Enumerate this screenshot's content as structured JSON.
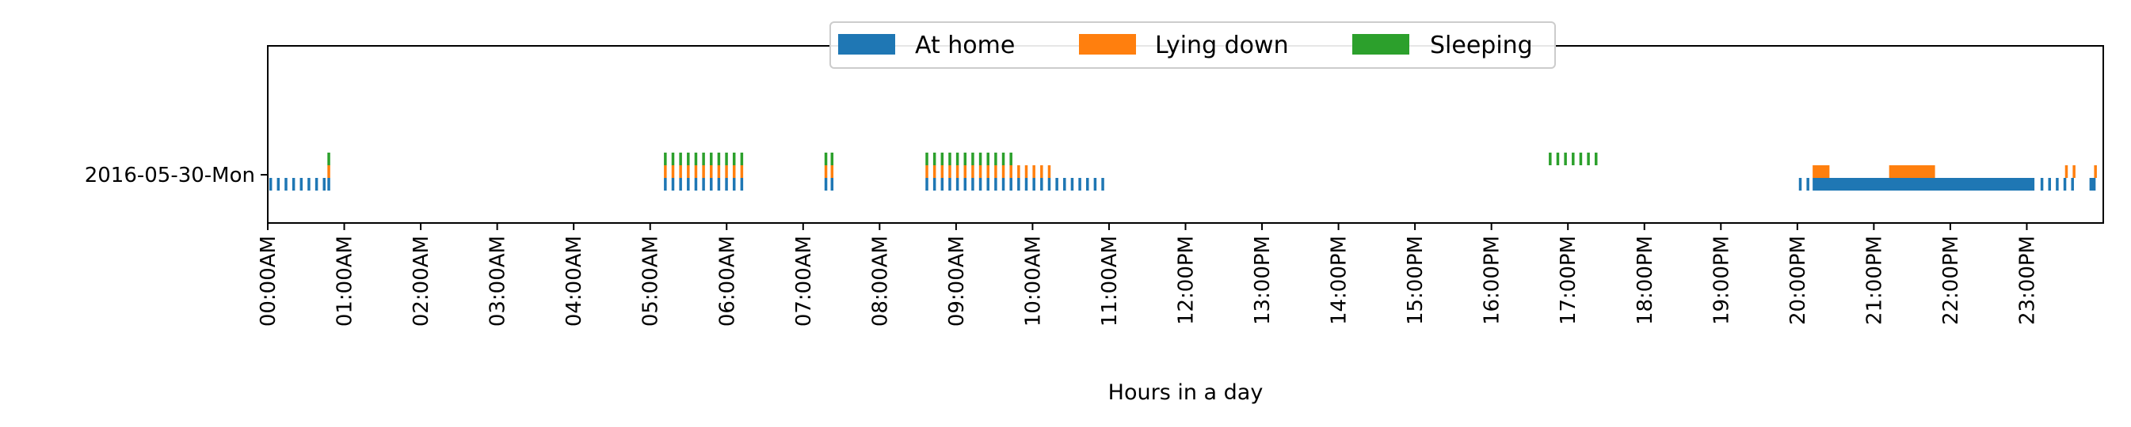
{
  "chart_data": {
    "type": "timeline",
    "xlabel": "Hours in a day",
    "ylabel": "",
    "xlim": [
      0,
      24
    ],
    "grid": false,
    "legend_placement": "upper-center",
    "categories": [
      "2016-05-30-Mon"
    ],
    "x_ticks": [
      "00:00AM",
      "01:00AM",
      "02:00AM",
      "03:00AM",
      "04:00AM",
      "05:00AM",
      "06:00AM",
      "07:00AM",
      "08:00AM",
      "09:00AM",
      "10:00AM",
      "11:00AM",
      "12:00PM",
      "13:00PM",
      "14:00PM",
      "15:00PM",
      "16:00PM",
      "17:00PM",
      "18:00PM",
      "19:00PM",
      "20:00PM",
      "21:00PM",
      "22:00PM",
      "23:00PM"
    ],
    "series": [
      {
        "name": "At home",
        "color": "#1f77b4",
        "marks": [
          {
            "t": 0.02
          },
          {
            "t": 0.12
          },
          {
            "t": 0.22
          },
          {
            "t": 0.32
          },
          {
            "t": 0.42
          },
          {
            "t": 0.52
          },
          {
            "t": 0.62
          },
          {
            "t": 0.72
          },
          {
            "t": 0.78
          },
          {
            "t": 5.18
          },
          {
            "t": 5.28
          },
          {
            "t": 5.38
          },
          {
            "t": 5.48
          },
          {
            "t": 5.58
          },
          {
            "t": 5.68
          },
          {
            "t": 5.78
          },
          {
            "t": 5.88
          },
          {
            "t": 5.98
          },
          {
            "t": 6.08
          },
          {
            "t": 6.18
          },
          {
            "t": 7.28
          },
          {
            "t": 7.36
          },
          {
            "t": 8.6
          },
          {
            "t": 8.7
          },
          {
            "t": 8.8
          },
          {
            "t": 8.9
          },
          {
            "t": 9.0
          },
          {
            "t": 9.1
          },
          {
            "t": 9.2
          },
          {
            "t": 9.3
          },
          {
            "t": 9.4
          },
          {
            "t": 9.5
          },
          {
            "t": 9.6
          },
          {
            "t": 9.7
          },
          {
            "t": 9.8
          },
          {
            "t": 9.9
          },
          {
            "t": 10.0
          },
          {
            "t": 10.1
          },
          {
            "t": 10.2
          },
          {
            "t": 10.3
          },
          {
            "t": 10.4
          },
          {
            "t": 10.5
          },
          {
            "t": 10.6
          },
          {
            "t": 10.7
          },
          {
            "t": 10.8
          },
          {
            "t": 10.9
          },
          {
            "t": 20.02
          },
          {
            "t": 20.12
          },
          {
            "start": 20.2,
            "end": 23.1
          },
          {
            "t": 23.18
          },
          {
            "t": 23.28
          },
          {
            "t": 23.38
          },
          {
            "t": 23.48
          },
          {
            "t": 23.58
          },
          {
            "start": 23.82,
            "end": 23.9
          }
        ]
      },
      {
        "name": "Lying down",
        "color": "#ff7f0e",
        "marks": [
          {
            "t": 0.78
          },
          {
            "t": 5.18
          },
          {
            "t": 5.28
          },
          {
            "t": 5.38
          },
          {
            "t": 5.48
          },
          {
            "t": 5.58
          },
          {
            "t": 5.68
          },
          {
            "t": 5.78
          },
          {
            "t": 5.88
          },
          {
            "t": 5.98
          },
          {
            "t": 6.08
          },
          {
            "t": 6.18
          },
          {
            "t": 7.28
          },
          {
            "t": 7.36
          },
          {
            "t": 8.6
          },
          {
            "t": 8.7
          },
          {
            "t": 8.8
          },
          {
            "t": 8.9
          },
          {
            "t": 9.0
          },
          {
            "t": 9.1
          },
          {
            "t": 9.2
          },
          {
            "t": 9.3
          },
          {
            "t": 9.4
          },
          {
            "t": 9.5
          },
          {
            "t": 9.6
          },
          {
            "t": 9.7
          },
          {
            "t": 9.8
          },
          {
            "t": 9.9
          },
          {
            "t": 10.0
          },
          {
            "t": 10.1
          },
          {
            "t": 10.2
          },
          {
            "start": 20.2,
            "end": 20.42
          },
          {
            "start": 21.2,
            "end": 21.8
          },
          {
            "t": 23.5
          },
          {
            "t": 23.6
          },
          {
            "t": 23.88
          }
        ]
      },
      {
        "name": "Sleeping",
        "color": "#2ca02c",
        "marks": [
          {
            "t": 0.78
          },
          {
            "t": 5.18
          },
          {
            "t": 5.28
          },
          {
            "t": 5.38
          },
          {
            "t": 5.48
          },
          {
            "t": 5.58
          },
          {
            "t": 5.68
          },
          {
            "t": 5.78
          },
          {
            "t": 5.88
          },
          {
            "t": 5.98
          },
          {
            "t": 6.08
          },
          {
            "t": 6.18
          },
          {
            "t": 7.28
          },
          {
            "t": 7.36
          },
          {
            "t": 8.6
          },
          {
            "t": 8.7
          },
          {
            "t": 8.8
          },
          {
            "t": 8.9
          },
          {
            "t": 9.0
          },
          {
            "t": 9.1
          },
          {
            "t": 9.2
          },
          {
            "t": 9.3
          },
          {
            "t": 9.4
          },
          {
            "t": 9.5
          },
          {
            "t": 9.6
          },
          {
            "t": 9.7
          },
          {
            "t": 16.75
          },
          {
            "t": 16.85
          },
          {
            "t": 16.95
          },
          {
            "t": 17.05
          },
          {
            "t": 17.15
          },
          {
            "t": 17.25
          },
          {
            "t": 17.35
          }
        ]
      }
    ]
  }
}
